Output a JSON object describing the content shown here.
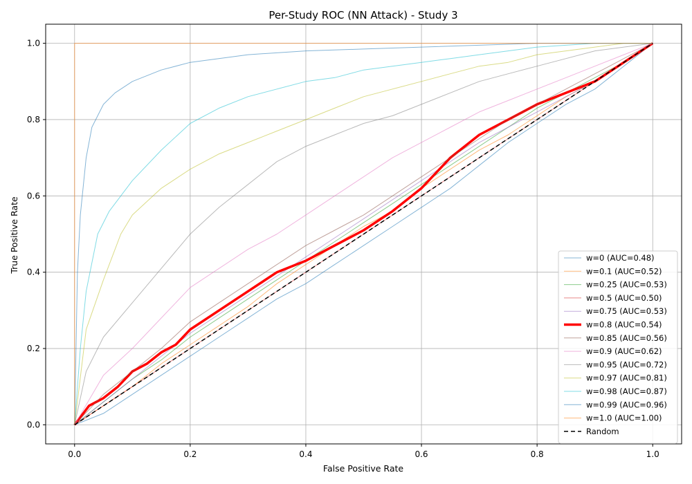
{
  "chart_data": {
    "type": "line",
    "title": "Per-Study ROC (NN Attack) - Study 3",
    "xlabel": "False Positive Rate",
    "ylabel": "True Positive Rate",
    "xlim": [
      -0.05,
      1.05
    ],
    "ylim": [
      -0.05,
      1.05
    ],
    "xticks": [
      0.0,
      0.2,
      0.4,
      0.6,
      0.8,
      1.0
    ],
    "yticks": [
      0.0,
      0.2,
      0.4,
      0.6,
      0.8,
      1.0
    ],
    "xtick_labels": [
      "0.0",
      "0.2",
      "0.4",
      "0.6",
      "0.8",
      "1.0"
    ],
    "ytick_labels": [
      "0.0",
      "0.2",
      "0.4",
      "0.6",
      "0.8",
      "1.0"
    ],
    "grid": true,
    "legend_position": "lower right",
    "series": [
      {
        "name": "w=0 (AUC=0.48)",
        "color": "#1f77b4",
        "width": 1,
        "opacity": 0.55,
        "dash": "",
        "x": [
          0,
          0.05,
          0.1,
          0.15,
          0.2,
          0.25,
          0.3,
          0.35,
          0.4,
          0.45,
          0.5,
          0.55,
          0.6,
          0.65,
          0.7,
          0.75,
          0.8,
          0.85,
          0.9,
          0.95,
          1.0
        ],
        "y": [
          0,
          0.03,
          0.08,
          0.13,
          0.18,
          0.23,
          0.28,
          0.33,
          0.37,
          0.42,
          0.47,
          0.52,
          0.57,
          0.62,
          0.68,
          0.74,
          0.79,
          0.84,
          0.88,
          0.94,
          1.0
        ]
      },
      {
        "name": "w=0.1 (AUC=0.52)",
        "color": "#ff7f0e",
        "width": 1,
        "opacity": 0.55,
        "dash": "",
        "x": [
          0,
          0.05,
          0.1,
          0.15,
          0.2,
          0.25,
          0.3,
          0.35,
          0.4,
          0.45,
          0.5,
          0.55,
          0.6,
          0.65,
          0.7,
          0.75,
          0.8,
          0.85,
          0.9,
          0.95,
          1.0
        ],
        "y": [
          0,
          0.05,
          0.1,
          0.16,
          0.21,
          0.26,
          0.31,
          0.37,
          0.42,
          0.47,
          0.52,
          0.56,
          0.62,
          0.67,
          0.72,
          0.76,
          0.81,
          0.86,
          0.9,
          0.95,
          1.0
        ]
      },
      {
        "name": "w=0.25 (AUC=0.53)",
        "color": "#2ca02c",
        "width": 1,
        "opacity": 0.55,
        "dash": "",
        "x": [
          0,
          0.05,
          0.1,
          0.15,
          0.2,
          0.25,
          0.3,
          0.35,
          0.4,
          0.45,
          0.5,
          0.55,
          0.6,
          0.65,
          0.7,
          0.75,
          0.8,
          0.85,
          0.9,
          0.95,
          1.0
        ],
        "y": [
          0,
          0.06,
          0.12,
          0.17,
          0.23,
          0.28,
          0.33,
          0.38,
          0.43,
          0.48,
          0.53,
          0.58,
          0.63,
          0.68,
          0.73,
          0.78,
          0.83,
          0.87,
          0.91,
          0.95,
          1.0
        ]
      },
      {
        "name": "w=0.5 (AUC=0.50)",
        "color": "#d62728",
        "width": 1,
        "opacity": 0.55,
        "dash": "",
        "x": [
          0,
          0.05,
          0.1,
          0.15,
          0.2,
          0.25,
          0.3,
          0.35,
          0.4,
          0.45,
          0.5,
          0.55,
          0.6,
          0.65,
          0.7,
          0.75,
          0.8,
          0.85,
          0.9,
          0.95,
          1.0
        ],
        "y": [
          0,
          0.05,
          0.1,
          0.15,
          0.2,
          0.25,
          0.3,
          0.35,
          0.4,
          0.45,
          0.5,
          0.55,
          0.6,
          0.65,
          0.7,
          0.75,
          0.8,
          0.85,
          0.9,
          0.95,
          1.0
        ]
      },
      {
        "name": "w=0.75 (AUC=0.53)",
        "color": "#9467bd",
        "width": 1,
        "opacity": 0.55,
        "dash": "",
        "x": [
          0,
          0.05,
          0.1,
          0.15,
          0.2,
          0.25,
          0.3,
          0.35,
          0.4,
          0.45,
          0.5,
          0.55,
          0.6,
          0.65,
          0.7,
          0.75,
          0.8,
          0.85,
          0.9,
          0.95,
          1.0
        ],
        "y": [
          0,
          0.06,
          0.12,
          0.18,
          0.24,
          0.29,
          0.34,
          0.39,
          0.44,
          0.49,
          0.54,
          0.59,
          0.64,
          0.69,
          0.74,
          0.78,
          0.82,
          0.86,
          0.9,
          0.95,
          1.0
        ]
      },
      {
        "name": "w=0.8 (AUC=0.54)",
        "color": "#ff0000",
        "width": 3.5,
        "opacity": 1,
        "dash": "",
        "x": [
          0,
          0.025,
          0.05,
          0.075,
          0.1,
          0.125,
          0.15,
          0.175,
          0.2,
          0.25,
          0.3,
          0.35,
          0.4,
          0.45,
          0.5,
          0.55,
          0.6,
          0.65,
          0.7,
          0.75,
          0.8,
          0.85,
          0.9,
          0.95,
          1.0
        ],
        "y": [
          0,
          0.05,
          0.07,
          0.1,
          0.14,
          0.16,
          0.19,
          0.21,
          0.25,
          0.3,
          0.35,
          0.4,
          0.43,
          0.47,
          0.51,
          0.56,
          0.62,
          0.7,
          0.76,
          0.8,
          0.84,
          0.87,
          0.9,
          0.95,
          1.0
        ]
      },
      {
        "name": "w=0.85 (AUC=0.56)",
        "color": "#8c564b",
        "width": 1,
        "opacity": 0.55,
        "dash": "",
        "x": [
          0,
          0.05,
          0.1,
          0.15,
          0.2,
          0.25,
          0.3,
          0.35,
          0.4,
          0.45,
          0.5,
          0.55,
          0.6,
          0.65,
          0.7,
          0.75,
          0.8,
          0.85,
          0.9,
          0.95,
          1.0
        ],
        "y": [
          0,
          0.08,
          0.14,
          0.2,
          0.27,
          0.32,
          0.37,
          0.42,
          0.47,
          0.51,
          0.55,
          0.6,
          0.65,
          0.7,
          0.75,
          0.8,
          0.84,
          0.88,
          0.92,
          0.96,
          1.0
        ]
      },
      {
        "name": "w=0.9 (AUC=0.62)",
        "color": "#e377c2",
        "width": 1,
        "opacity": 0.55,
        "dash": "",
        "x": [
          0,
          0.05,
          0.1,
          0.15,
          0.2,
          0.25,
          0.3,
          0.35,
          0.4,
          0.45,
          0.5,
          0.55,
          0.6,
          0.65,
          0.7,
          0.75,
          0.8,
          0.85,
          0.9,
          0.95,
          1.0
        ],
        "y": [
          0,
          0.13,
          0.2,
          0.28,
          0.36,
          0.41,
          0.46,
          0.5,
          0.55,
          0.6,
          0.65,
          0.7,
          0.74,
          0.78,
          0.82,
          0.85,
          0.88,
          0.91,
          0.94,
          0.97,
          1.0
        ]
      },
      {
        "name": "w=0.95 (AUC=0.72)",
        "color": "#7f7f7f",
        "width": 1,
        "opacity": 0.55,
        "dash": "",
        "x": [
          0,
          0.02,
          0.05,
          0.1,
          0.15,
          0.2,
          0.25,
          0.3,
          0.35,
          0.4,
          0.45,
          0.5,
          0.55,
          0.6,
          0.65,
          0.7,
          0.75,
          0.8,
          0.85,
          0.9,
          0.95,
          1.0
        ],
        "y": [
          0,
          0.14,
          0.23,
          0.32,
          0.41,
          0.5,
          0.57,
          0.63,
          0.69,
          0.73,
          0.76,
          0.79,
          0.81,
          0.84,
          0.87,
          0.9,
          0.92,
          0.94,
          0.96,
          0.98,
          0.99,
          1.0
        ]
      },
      {
        "name": "w=0.97 (AUC=0.81)",
        "color": "#bcbd22",
        "width": 1,
        "opacity": 0.55,
        "dash": "",
        "x": [
          0,
          0.02,
          0.05,
          0.08,
          0.1,
          0.15,
          0.2,
          0.25,
          0.3,
          0.35,
          0.4,
          0.45,
          0.5,
          0.55,
          0.6,
          0.65,
          0.7,
          0.75,
          0.8,
          0.85,
          0.9,
          0.95,
          1.0
        ],
        "y": [
          0,
          0.25,
          0.38,
          0.5,
          0.55,
          0.62,
          0.67,
          0.71,
          0.74,
          0.77,
          0.8,
          0.83,
          0.86,
          0.88,
          0.9,
          0.92,
          0.94,
          0.95,
          0.97,
          0.98,
          0.99,
          1.0,
          1.0
        ]
      },
      {
        "name": "w=0.98 (AUC=0.87)",
        "color": "#17becf",
        "width": 1,
        "opacity": 0.55,
        "dash": "",
        "x": [
          0,
          0.01,
          0.02,
          0.04,
          0.06,
          0.08,
          0.1,
          0.15,
          0.2,
          0.25,
          0.3,
          0.35,
          0.4,
          0.45,
          0.5,
          0.55,
          0.6,
          0.65,
          0.7,
          0.75,
          0.8,
          0.9,
          1.0
        ],
        "y": [
          0,
          0.2,
          0.35,
          0.5,
          0.56,
          0.6,
          0.64,
          0.72,
          0.79,
          0.83,
          0.86,
          0.88,
          0.9,
          0.91,
          0.93,
          0.94,
          0.95,
          0.96,
          0.97,
          0.98,
          0.99,
          1.0,
          1.0
        ]
      },
      {
        "name": "w=0.99 (AUC=0.96)",
        "color": "#1f77b4",
        "width": 1,
        "opacity": 0.55,
        "dash": "",
        "x": [
          0,
          0.005,
          0.01,
          0.02,
          0.03,
          0.05,
          0.07,
          0.1,
          0.15,
          0.2,
          0.3,
          0.4,
          0.5,
          0.6,
          0.7,
          0.8,
          0.9,
          1.0
        ],
        "y": [
          0,
          0.4,
          0.55,
          0.7,
          0.78,
          0.84,
          0.87,
          0.9,
          0.93,
          0.95,
          0.97,
          0.98,
          0.985,
          0.99,
          0.995,
          1.0,
          1.0,
          1.0
        ]
      },
      {
        "name": "w=1.0 (AUC=1.00)",
        "color": "#ff7f0e",
        "width": 1,
        "opacity": 0.55,
        "dash": "",
        "x": [
          0,
          0,
          1.0
        ],
        "y": [
          0,
          1.0,
          1.0
        ]
      },
      {
        "name": "Random",
        "color": "#000000",
        "width": 1.5,
        "opacity": 1,
        "dash": "6,4",
        "x": [
          0,
          1.0
        ],
        "y": [
          0,
          1.0
        ]
      }
    ]
  }
}
